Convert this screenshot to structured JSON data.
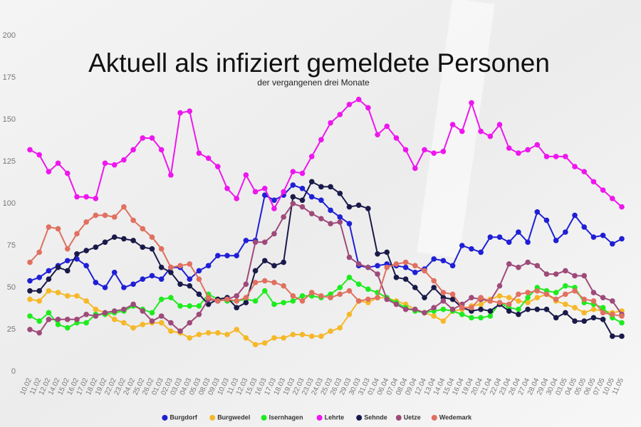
{
  "chart_data": {
    "type": "line",
    "title": "Aktuell als infiziert gemeldete Personen",
    "subtitle": "der vergangenen drei Monate",
    "categories": [
      "10.02",
      "11.02",
      "12.02",
      "14.02",
      "15.02",
      "16.02",
      "17.02",
      "18.02",
      "19.02",
      "22.02",
      "23.02",
      "24.02",
      "25.02",
      "26.02",
      "01.03",
      "02.03",
      "03.03",
      "04.03",
      "05.03",
      "08.03",
      "09.03",
      "10.03",
      "11.03",
      "12.03",
      "15.03",
      "16.03",
      "17.03",
      "18.03",
      "19.03",
      "22.03",
      "23.03",
      "24.03",
      "25.03",
      "26.03",
      "29.03",
      "30.03",
      "31.03",
      "01.04",
      "06.04",
      "07.04",
      "08.04",
      "09.04",
      "12.04",
      "13.04",
      "14.04",
      "15.04",
      "16.04",
      "19.04",
      "20.04",
      "21.04",
      "22.04",
      "23.04",
      "26.04",
      "27.04",
      "28.04",
      "29.04",
      "30.04",
      "03.05",
      "04.05",
      "05.05",
      "06.05",
      "07.05",
      "10.05",
      "11.05"
    ],
    "ylim": [
      0,
      200
    ],
    "yticks": [
      0,
      25,
      50,
      75,
      100,
      125,
      150,
      175,
      200
    ],
    "legend": "bottom",
    "series": [
      {
        "name": "Burgdorf",
        "color": "#1f1fd6",
        "values": [
          54,
          56,
          60,
          63,
          66,
          67,
          63,
          53,
          50,
          59,
          50,
          52,
          55,
          57,
          55,
          62,
          62,
          55,
          60,
          63,
          69,
          69,
          69,
          78,
          78,
          105,
          102,
          105,
          111,
          109,
          104,
          102,
          96,
          92,
          88,
          63,
          62,
          63,
          64,
          63,
          62,
          59,
          61,
          67,
          66,
          63,
          75,
          73,
          71,
          80,
          80,
          77,
          83,
          77,
          95,
          90,
          78,
          83,
          93,
          86,
          80,
          81,
          76,
          79
        ]
      },
      {
        "name": "Burgwedel",
        "color": "#f5b829",
        "values": [
          43,
          42,
          48,
          47,
          45,
          45,
          42,
          37,
          35,
          31,
          29,
          26,
          28,
          29,
          29,
          24,
          23,
          20,
          22,
          23,
          23,
          22,
          25,
          20,
          16,
          17,
          20,
          20,
          22,
          22,
          21,
          21,
          24,
          26,
          34,
          42,
          41,
          44,
          44,
          42,
          40,
          37,
          35,
          33,
          30,
          36,
          37,
          39,
          40,
          43,
          45,
          44,
          42,
          41,
          44,
          46,
          42,
          40,
          38,
          35,
          37,
          36,
          35,
          36
        ]
      },
      {
        "name": "Isernhagen",
        "color": "#1eeb1e",
        "values": [
          33,
          30,
          35,
          28,
          26,
          29,
          29,
          34,
          34,
          35,
          36,
          39,
          37,
          35,
          43,
          44,
          39,
          39,
          39,
          46,
          43,
          42,
          42,
          43,
          42,
          48,
          40,
          41,
          42,
          45,
          45,
          44,
          46,
          50,
          56,
          52,
          49,
          47,
          44,
          41,
          38,
          36,
          35,
          36,
          37,
          36,
          34,
          32,
          32,
          33,
          41,
          38,
          37,
          44,
          50,
          48,
          47,
          51,
          50,
          41,
          40,
          38,
          32,
          29
        ]
      },
      {
        "name": "Lehrte",
        "color": "#ee16ee",
        "values": [
          132,
          129,
          119,
          124,
          118,
          104,
          104,
          103,
          124,
          123,
          126,
          132,
          139,
          139,
          132,
          117,
          154,
          155,
          130,
          127,
          122,
          109,
          103,
          117,
          107,
          109,
          97,
          107,
          119,
          118,
          128,
          138,
          148,
          153,
          159,
          162,
          157,
          141,
          146,
          139,
          132,
          121,
          132,
          130,
          131,
          147,
          143,
          160,
          143,
          140,
          147,
          133,
          130,
          132,
          135,
          128,
          128,
          128,
          122,
          119,
          113,
          108,
          103,
          98
        ]
      },
      {
        "name": "Sehnde",
        "color": "#1a1a4a",
        "values": [
          48,
          48,
          55,
          62,
          60,
          70,
          72,
          74,
          77,
          80,
          79,
          78,
          74,
          73,
          62,
          59,
          52,
          51,
          46,
          40,
          43,
          44,
          38,
          41,
          60,
          66,
          63,
          65,
          104,
          102,
          113,
          110,
          110,
          106,
          98,
          99,
          97,
          70,
          71,
          56,
          55,
          50,
          44,
          50,
          44,
          43,
          38,
          36,
          37,
          36,
          40,
          36,
          34,
          37,
          37,
          37,
          32,
          35,
          30,
          30,
          32,
          31,
          21,
          21
        ]
      },
      {
        "name": "Uetze",
        "color": "#9e4a7a",
        "values": [
          25,
          23,
          31,
          31,
          31,
          31,
          34,
          33,
          35,
          36,
          37,
          40,
          36,
          30,
          33,
          29,
          24,
          29,
          34,
          43,
          42,
          43,
          45,
          52,
          77,
          77,
          82,
          92,
          100,
          98,
          94,
          91,
          88,
          89,
          68,
          64,
          62,
          58,
          43,
          40,
          37,
          37,
          35,
          38,
          42,
          37,
          40,
          44,
          43,
          42,
          51,
          64,
          62,
          65,
          63,
          58,
          58,
          60,
          57,
          57,
          47,
          44,
          42,
          34
        ]
      },
      {
        "name": "Wedemark",
        "color": "#e07060",
        "values": [
          65,
          71,
          86,
          85,
          73,
          82,
          89,
          93,
          93,
          92,
          98,
          90,
          85,
          80,
          73,
          62,
          63,
          64,
          55,
          44,
          42,
          43,
          42,
          44,
          53,
          54,
          53,
          51,
          45,
          42,
          47,
          45,
          44,
          46,
          48,
          42,
          43,
          44,
          62,
          64,
          65,
          63,
          60,
          54,
          47,
          46,
          38,
          38,
          44,
          42,
          41,
          40,
          46,
          47,
          48,
          46,
          43,
          46,
          48,
          43,
          42,
          35,
          34,
          33
        ]
      }
    ]
  }
}
